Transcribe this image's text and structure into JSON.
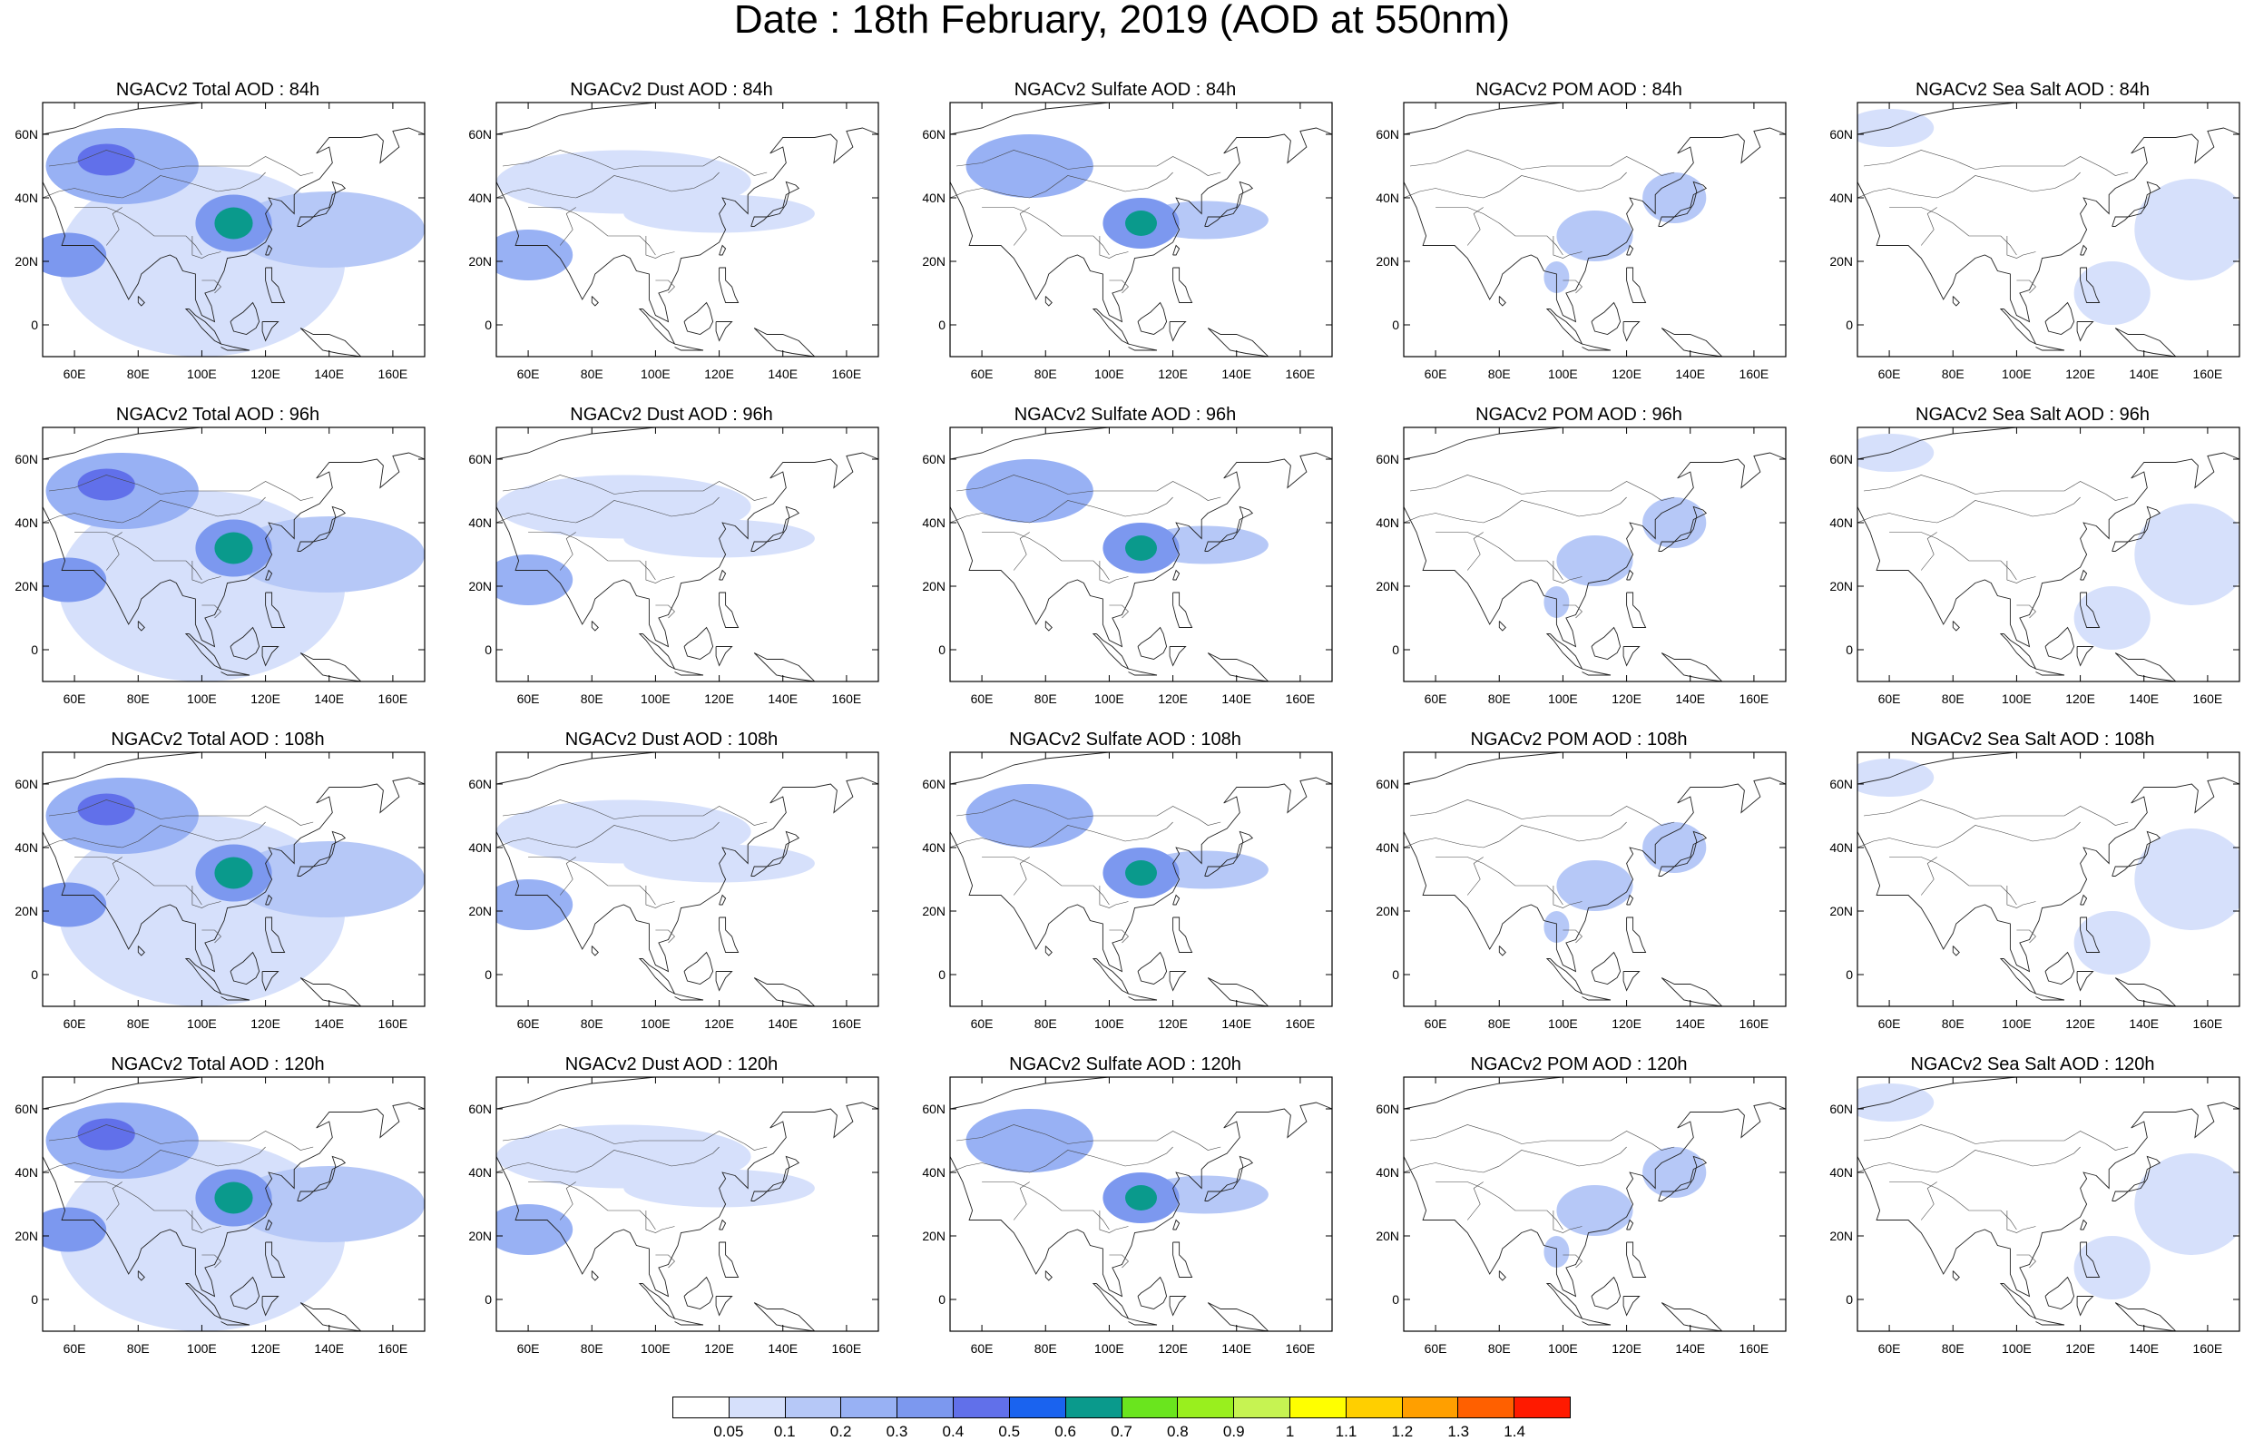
{
  "title": "Date : 18th February, 2019 (AOD at 550nm)",
  "map": {
    "lon_range": [
      50,
      170
    ],
    "lat_range": [
      -10,
      70
    ],
    "lat_ticks": [
      {
        "value": 0,
        "label": "0"
      },
      {
        "value": 20,
        "label": "20N"
      },
      {
        "value": 40,
        "label": "40N"
      },
      {
        "value": 60,
        "label": "60N"
      }
    ],
    "lon_ticks": [
      {
        "value": 60,
        "label": "60E"
      },
      {
        "value": 80,
        "label": "80E"
      },
      {
        "value": 100,
        "label": "100E"
      },
      {
        "value": 120,
        "label": "120E"
      },
      {
        "value": 140,
        "label": "140E"
      },
      {
        "value": 160,
        "label": "160E"
      }
    ]
  },
  "panels": [
    {
      "title": "NGACv2 Total AOD : 84h",
      "species": "total",
      "hour": 84
    },
    {
      "title": "NGACv2 Dust AOD : 84h",
      "species": "dust",
      "hour": 84
    },
    {
      "title": "NGACv2 Sulfate AOD : 84h",
      "species": "sulfate",
      "hour": 84
    },
    {
      "title": "NGACv2 POM AOD : 84h",
      "species": "pom",
      "hour": 84
    },
    {
      "title": "NGACv2 Sea Salt AOD : 84h",
      "species": "seasalt",
      "hour": 84
    },
    {
      "title": "NGACv2 Total AOD : 96h",
      "species": "total",
      "hour": 96
    },
    {
      "title": "NGACv2 Dust AOD : 96h",
      "species": "dust",
      "hour": 96
    },
    {
      "title": "NGACv2 Sulfate AOD : 96h",
      "species": "sulfate",
      "hour": 96
    },
    {
      "title": "NGACv2 POM AOD : 96h",
      "species": "pom",
      "hour": 96
    },
    {
      "title": "NGACv2 Sea Salt AOD : 96h",
      "species": "seasalt",
      "hour": 96
    },
    {
      "title": "NGACv2 Total AOD : 108h",
      "species": "total",
      "hour": 108
    },
    {
      "title": "NGACv2 Dust AOD : 108h",
      "species": "dust",
      "hour": 108
    },
    {
      "title": "NGACv2 Sulfate AOD : 108h",
      "species": "sulfate",
      "hour": 108
    },
    {
      "title": "NGACv2 POM AOD : 108h",
      "species": "pom",
      "hour": 108
    },
    {
      "title": "NGACv2 Sea Salt AOD : 108h",
      "species": "seasalt",
      "hour": 108
    },
    {
      "title": "NGACv2 Total AOD : 120h",
      "species": "total",
      "hour": 120
    },
    {
      "title": "NGACv2 Dust AOD : 120h",
      "species": "dust",
      "hour": 120
    },
    {
      "title": "NGACv2 Sulfate AOD : 120h",
      "species": "sulfate",
      "hour": 120
    },
    {
      "title": "NGACv2 POM AOD : 120h",
      "species": "pom",
      "hour": 120
    },
    {
      "title": "NGACv2 Sea Salt  AOD : 120h",
      "species": "seasalt",
      "hour": 120
    }
  ],
  "colorbar": {
    "colors": [
      "#ffffff",
      "#d6e0fb",
      "#b6c8f7",
      "#98b1f4",
      "#7c98ef",
      "#6170ea",
      "#1a63ef",
      "#0a9a8c",
      "#6ae51e",
      "#99ef1e",
      "#c6f352",
      "#ffff00",
      "#ffcf00",
      "#ff9f00",
      "#ff6000",
      "#ff1a00"
    ],
    "labels": [
      "0.05",
      "0.1",
      "0.2",
      "0.3",
      "0.4",
      "0.5",
      "0.6",
      "0.7",
      "0.8",
      "0.9",
      "1",
      "1.1",
      "1.2",
      "1.3",
      "1.4"
    ]
  },
  "aerosol_fields": {
    "total": [
      {
        "lon": 75,
        "lat": 50,
        "rx": 24,
        "ry": 12,
        "level": 3
      },
      {
        "lon": 70,
        "lat": 52,
        "rx": 9,
        "ry": 5,
        "level": 5
      },
      {
        "lon": 110,
        "lat": 32,
        "rx": 12,
        "ry": 9,
        "level": 4
      },
      {
        "lon": 110,
        "lat": 32,
        "rx": 6,
        "ry": 5,
        "level": 7
      },
      {
        "lon": 58,
        "lat": 22,
        "rx": 12,
        "ry": 7,
        "level": 4
      },
      {
        "lon": 140,
        "lat": 30,
        "rx": 30,
        "ry": 12,
        "level": 2
      },
      {
        "lon": 100,
        "lat": 20,
        "rx": 45,
        "ry": 30,
        "level": 1
      }
    ],
    "dust": [
      {
        "lon": 60,
        "lat": 22,
        "rx": 14,
        "ry": 8,
        "level": 3
      },
      {
        "lon": 90,
        "lat": 45,
        "rx": 40,
        "ry": 10,
        "level": 1
      },
      {
        "lon": 120,
        "lat": 35,
        "rx": 30,
        "ry": 6,
        "level": 1
      }
    ],
    "sulfate": [
      {
        "lon": 75,
        "lat": 50,
        "rx": 20,
        "ry": 10,
        "level": 3
      },
      {
        "lon": 110,
        "lat": 32,
        "rx": 12,
        "ry": 8,
        "level": 4
      },
      {
        "lon": 110,
        "lat": 32,
        "rx": 5,
        "ry": 4,
        "level": 7
      },
      {
        "lon": 130,
        "lat": 33,
        "rx": 20,
        "ry": 6,
        "level": 2
      }
    ],
    "pom": [
      {
        "lon": 110,
        "lat": 28,
        "rx": 12,
        "ry": 8,
        "level": 2
      },
      {
        "lon": 135,
        "lat": 40,
        "rx": 10,
        "ry": 8,
        "level": 2
      },
      {
        "lon": 98,
        "lat": 15,
        "rx": 4,
        "ry": 5,
        "level": 2
      }
    ],
    "seasalt": [
      {
        "lon": 60,
        "lat": 62,
        "rx": 14,
        "ry": 6,
        "level": 1
      },
      {
        "lon": 155,
        "lat": 30,
        "rx": 18,
        "ry": 16,
        "level": 1
      },
      {
        "lon": 130,
        "lat": 10,
        "rx": 12,
        "ry": 10,
        "level": 1
      }
    ]
  }
}
